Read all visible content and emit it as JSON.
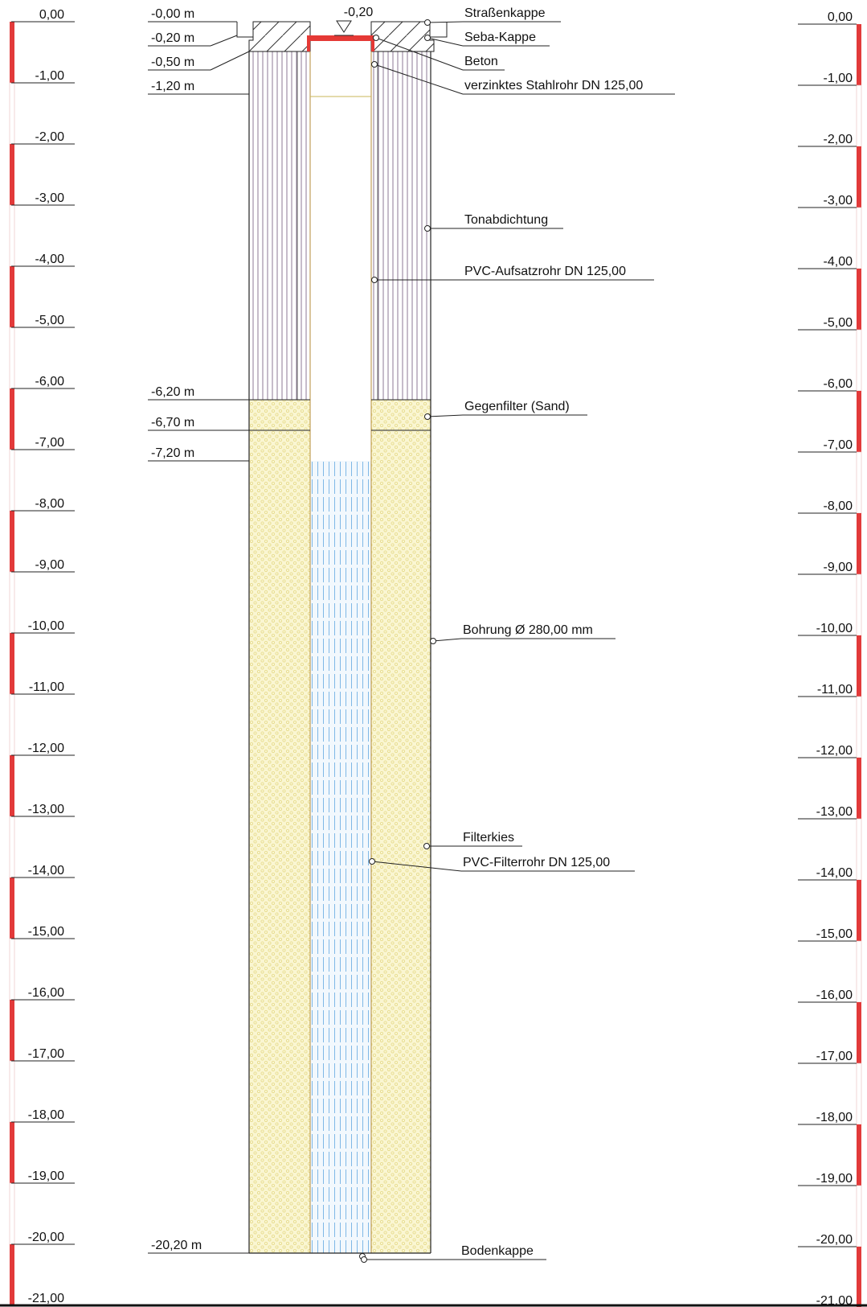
{
  "colors": {
    "ruler_red": "#e23a3a",
    "pipe_red": "#e53935",
    "filter_gravel": "#faf6d2",
    "gravel_dot": "#eadf8a",
    "clay_line": "#9a7fa0",
    "screen_blue": "#7fb8e6",
    "screen_fill": "#eef6fc",
    "line": "#222222"
  },
  "scale": {
    "left_ticks": [
      "0,00",
      "-1,00",
      "-2,00",
      "-3,00",
      "-4,00",
      "-5,00",
      "-6,00",
      "-7,00",
      "-8,00",
      "-9,00",
      "-10,00",
      "-11,00",
      "-12,00",
      "-13,00",
      "-14,00",
      "-15,00",
      "-16,00",
      "-17,00",
      "-18,00",
      "-19,00",
      "-20,00",
      "-21,00"
    ],
    "right_ticks": [
      "0,00",
      "-1,00",
      "-2,00",
      "-3,00",
      "-4,00",
      "-5,00",
      "-6,00",
      "-7,00",
      "-8,00",
      "-9,00",
      "-10,00",
      "-11,00",
      "-12,00",
      "-13,00",
      "-14,00",
      "-15,00",
      "-16,00",
      "-17,00",
      "-18,00",
      "-19,00",
      "-20,00",
      "-21,00"
    ]
  },
  "depth_labels": [
    "-0,00  m",
    "-0,20  m",
    "-0,50  m",
    "-1,20  m",
    "-6,20  m",
    "-6,70  m",
    "-7,20  m",
    "-20,20  m"
  ],
  "water_level": "-0,20",
  "components": [
    "Straßenkappe",
    "Seba-Kappe",
    "Beton",
    "verzinktes Stahlrohr DN 125,00",
    "Tonabdichtung",
    "PVC-Aufsatzrohr DN 125,00",
    "Gegenfilter (Sand)",
    "Bohrung Ø 280,00 mm",
    "Filterkies",
    "PVC-Filterrohr DN 125,00",
    "Bodenkappe"
  ]
}
